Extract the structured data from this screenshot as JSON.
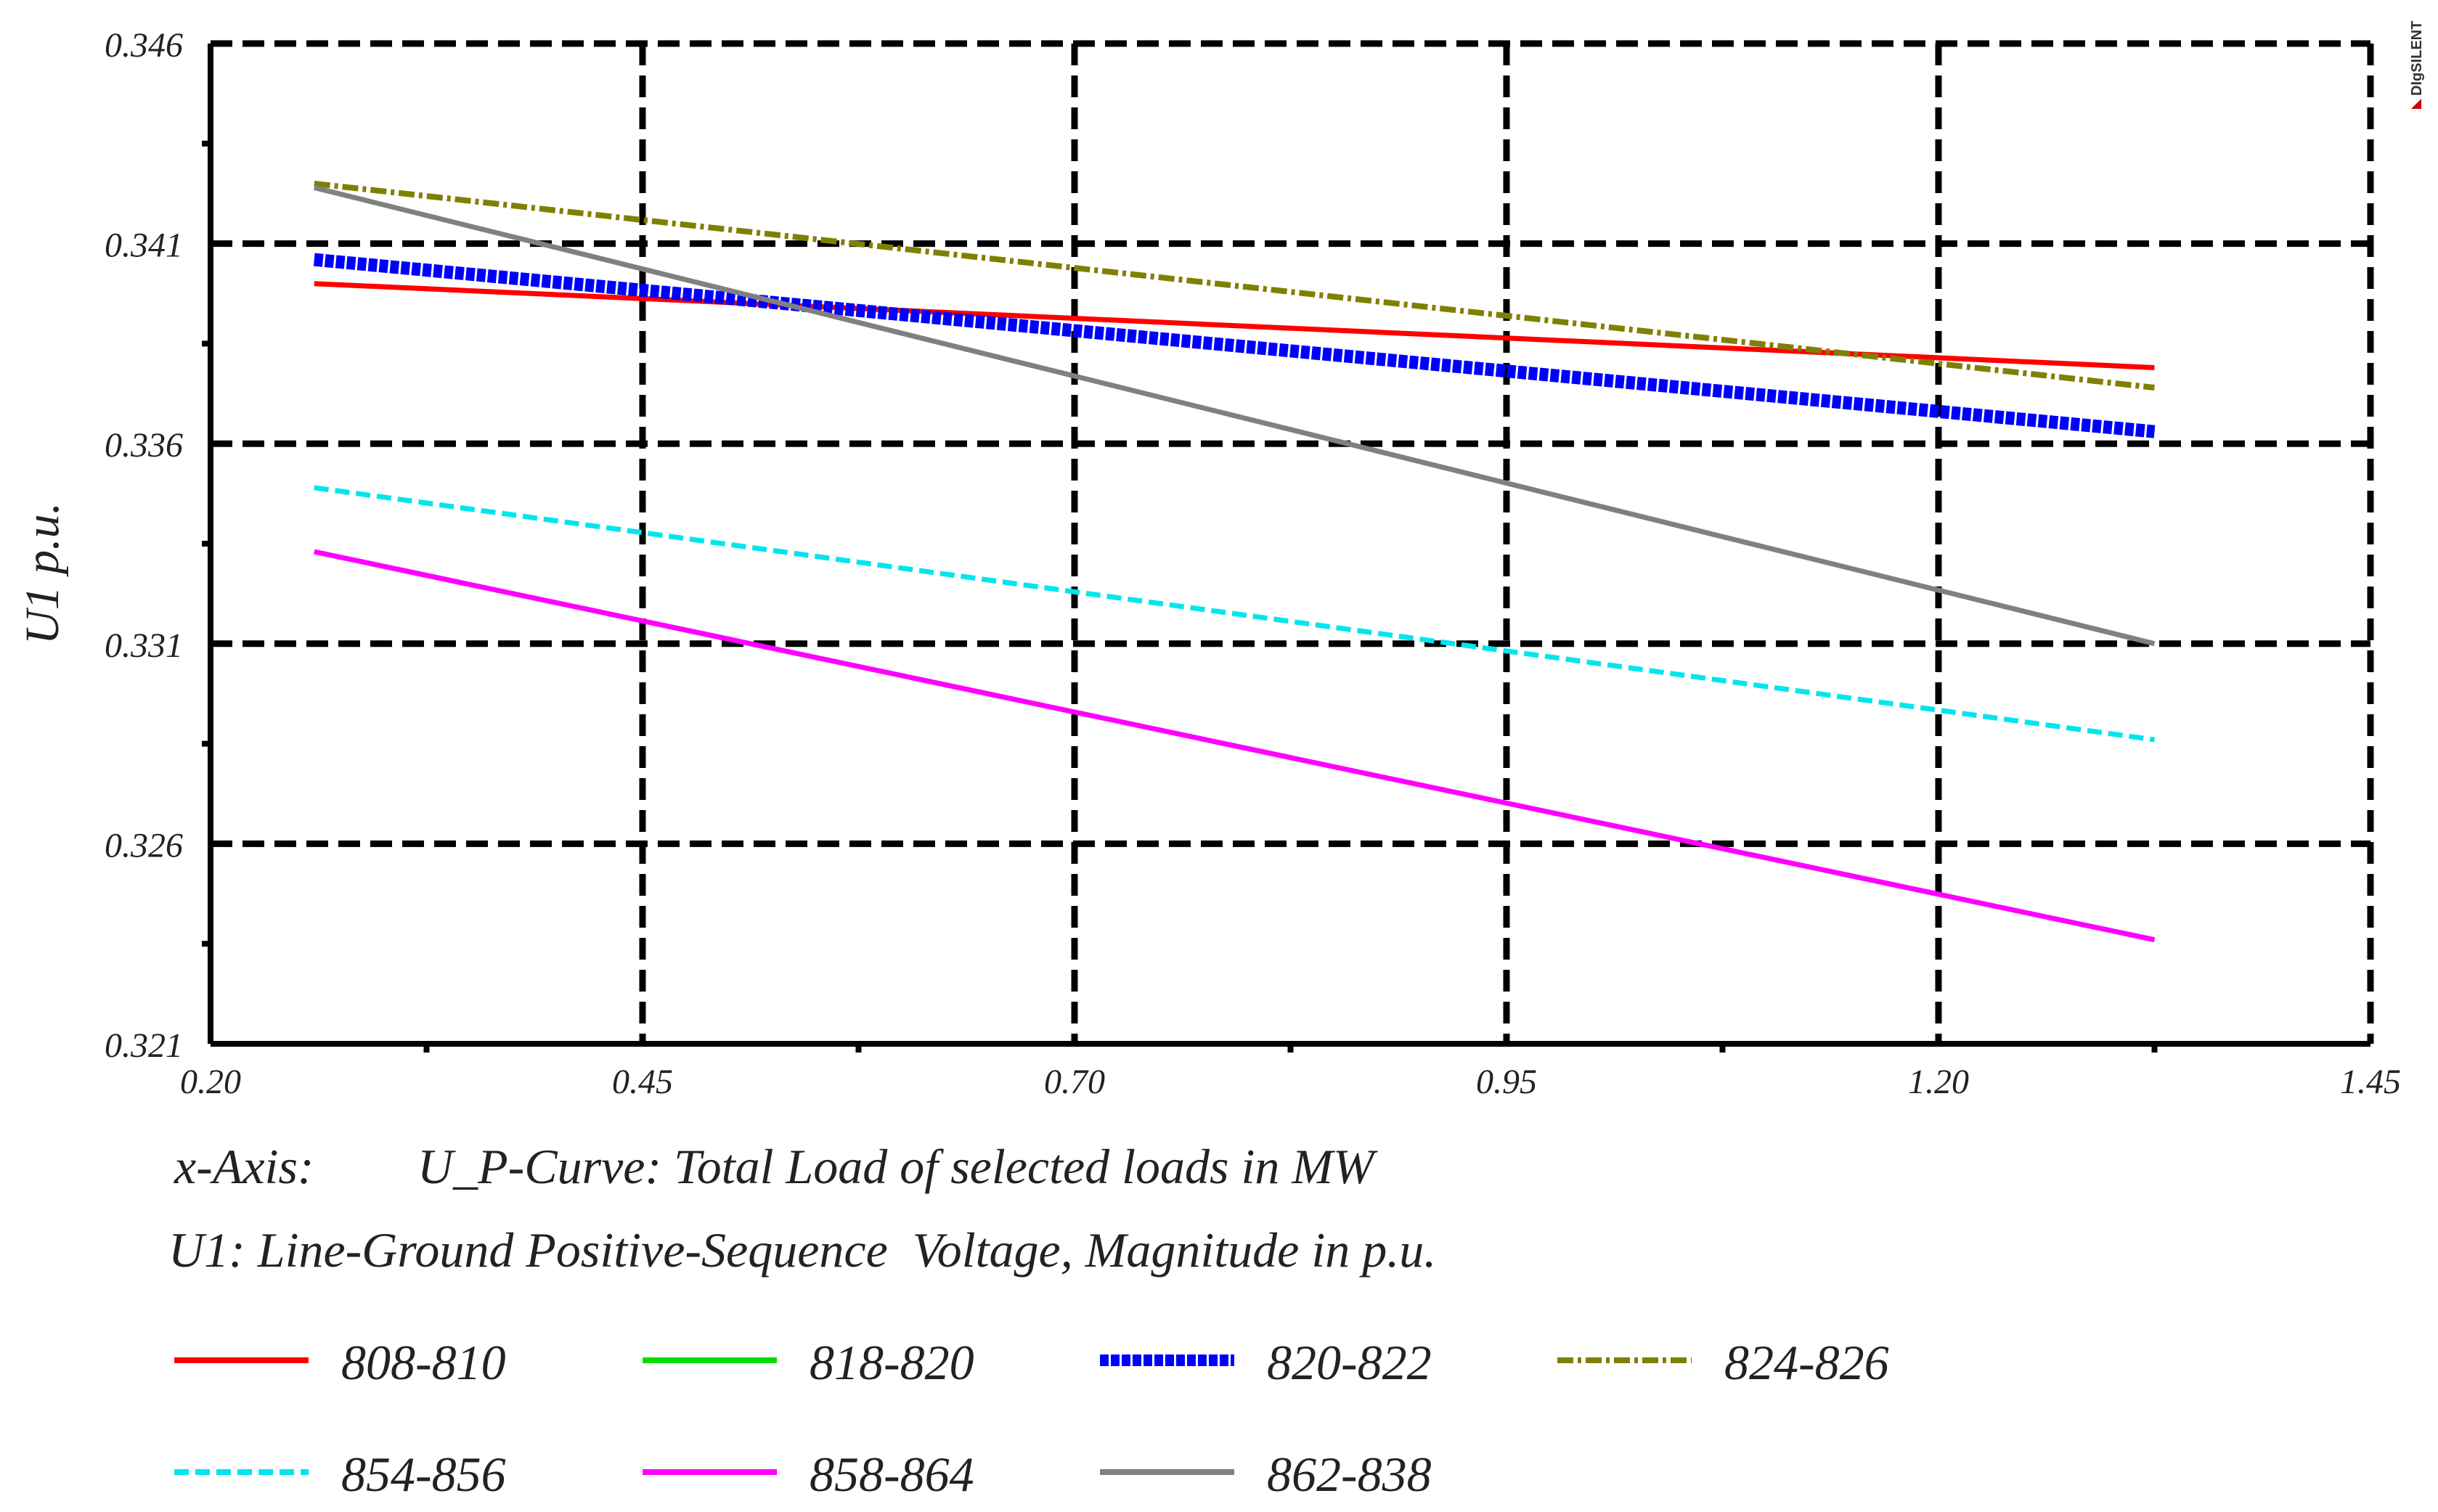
{
  "brand": "DIgSILENT",
  "chart_data": {
    "type": "line",
    "title": "",
    "xlabel": "x-Axis:",
    "xlabel_desc": "U_P-Curve: Total Load of selected loads in MW",
    "ylabel": "U1 p.u.",
    "variable_desc": "U1: Line-Ground Positive-Sequence  Voltage, Magnitude in p.u.",
    "xlim": [
      0.2,
      1.45
    ],
    "ylim": [
      0.321,
      0.346
    ],
    "x_ticks": [
      0.2,
      0.45,
      0.7,
      0.95,
      1.2,
      1.45
    ],
    "x_tick_labels": [
      "0.20",
      "0.45",
      "0.70",
      "0.95",
      "1.20",
      "1.45"
    ],
    "y_ticks": [
      0.321,
      0.326,
      0.331,
      0.336,
      0.341,
      0.346
    ],
    "y_tick_labels": [
      "0.321",
      "0.326",
      "0.331",
      "0.336",
      "0.341",
      "0.346"
    ],
    "grid": true,
    "legend_position": "bottom",
    "series": [
      {
        "name": "808-810",
        "color": "#ff0000",
        "style": "solid",
        "x": [
          0.26,
          1.325
        ],
        "y": [
          0.34,
          0.3379
        ]
      },
      {
        "name": "818-820",
        "color": "#00dd00",
        "style": "solid",
        "x": [],
        "y": []
      },
      {
        "name": "820-822",
        "color": "#0000ff",
        "style": "thick-dotted",
        "x": [
          0.26,
          1.325
        ],
        "y": [
          0.3406,
          0.3363
        ]
      },
      {
        "name": "824-826",
        "color": "#808000",
        "style": "dash-dot",
        "x": [
          0.26,
          1.325
        ],
        "y": [
          0.3425,
          0.3374
        ]
      },
      {
        "name": "854-856",
        "color": "#00e5ee",
        "style": "dashed",
        "x": [
          0.26,
          1.325
        ],
        "y": [
          0.3349,
          0.3286
        ]
      },
      {
        "name": "858-864",
        "color": "#ff00ff",
        "style": "solid",
        "x": [
          0.26,
          1.325
        ],
        "y": [
          0.3333,
          0.3236
        ]
      },
      {
        "name": "862-838",
        "color": "#808080",
        "style": "solid",
        "x": [
          0.26,
          1.325
        ],
        "y": [
          0.3424,
          0.331
        ]
      }
    ]
  }
}
